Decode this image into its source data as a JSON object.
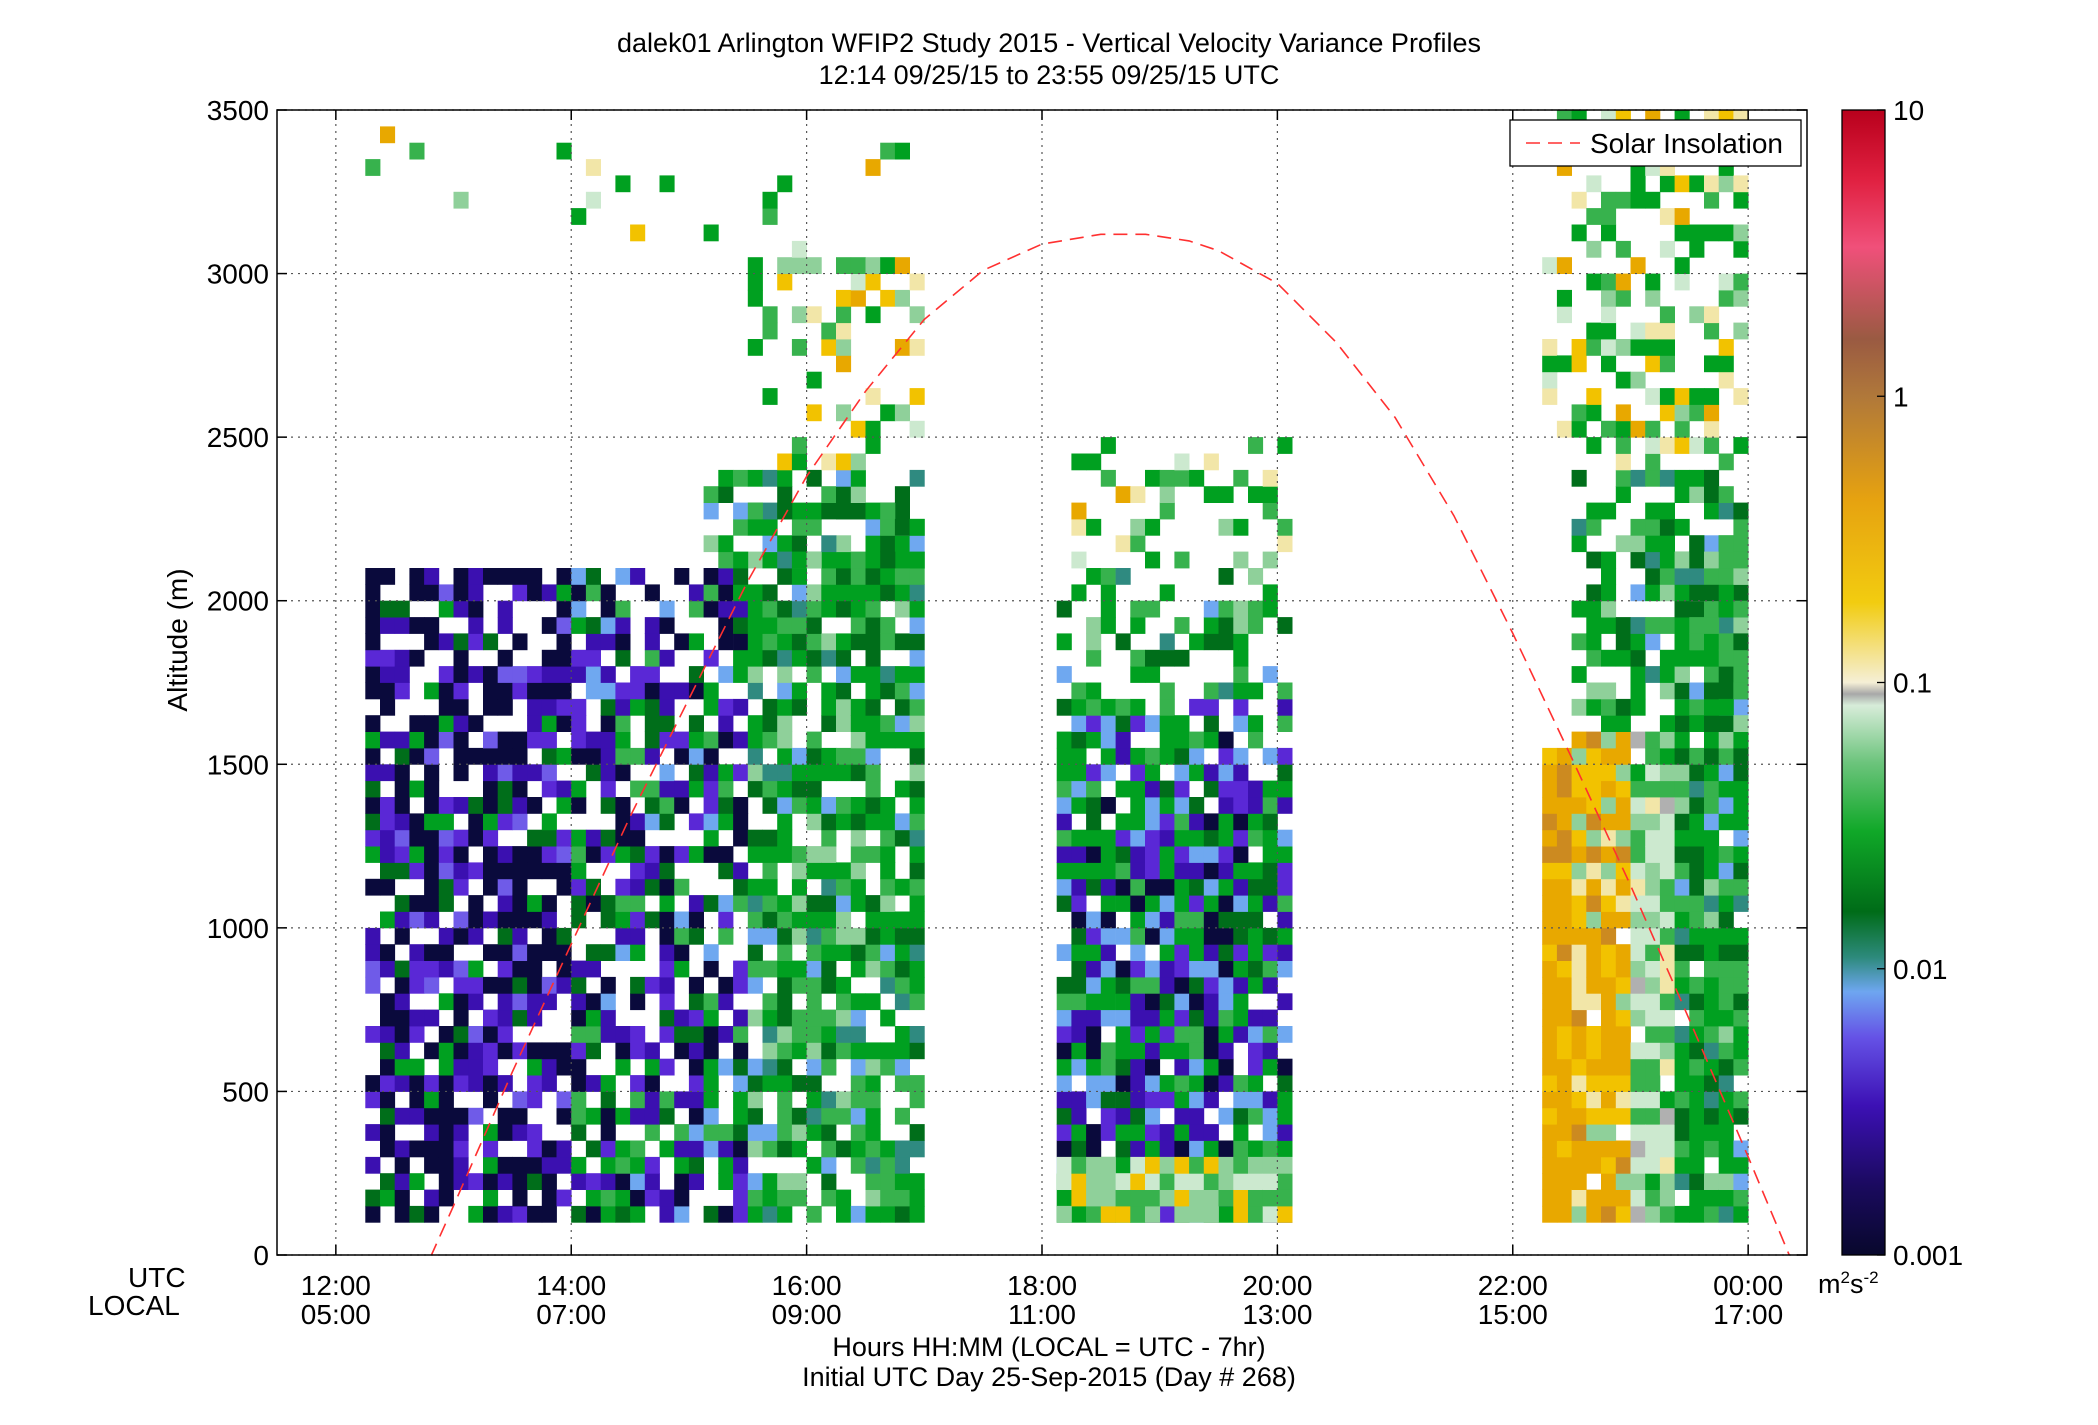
{
  "chart_data": {
    "type": "heatmap",
    "title": "dalek01 Arlington WFIP2 Study 2015 - Vertical Velocity Variance Profiles",
    "subtitle": "12:14 09/25/15 to 23:55 09/25/15  UTC",
    "xlabel": "Hours HH:MM  (LOCAL = UTC - 7hr)",
    "caption": "Initial UTC Day 25-Sep-2015 (Day # 268)",
    "ylabel": "Altitude (m)",
    "x_row_labels": [
      "UTC",
      "LOCAL"
    ],
    "xlim": [
      11.5,
      24.5
    ],
    "ylim": [
      0,
      3500
    ],
    "xticks": [
      {
        "value": 12,
        "utc": "12:00",
        "local": "05:00"
      },
      {
        "value": 14,
        "utc": "14:00",
        "local": "07:00"
      },
      {
        "value": 16,
        "utc": "16:00",
        "local": "09:00"
      },
      {
        "value": 18,
        "utc": "18:00",
        "local": "11:00"
      },
      {
        "value": 20,
        "utc": "20:00",
        "local": "13:00"
      },
      {
        "value": 22,
        "utc": "22:00",
        "local": "15:00"
      },
      {
        "value": 24,
        "utc": "00:00",
        "local": "17:00"
      }
    ],
    "yticks": [
      0,
      500,
      1000,
      1500,
      2000,
      2500,
      3000,
      3500
    ],
    "grid": true,
    "legend": {
      "entries": [
        "Solar Insolation"
      ],
      "placement": "top-right"
    },
    "colorbar": {
      "scale": "log",
      "range": [
        0.001,
        10
      ],
      "ticks": [
        "10",
        "1",
        "0.1",
        "0.01",
        "0.001"
      ],
      "units": "m2s-2"
    },
    "series": [
      {
        "name": "Solar Insolation",
        "style": "dashed",
        "color": "#ff3030",
        "x": [
          12.5,
          13.0,
          13.5,
          14.0,
          14.5,
          15.0,
          15.5,
          16.0,
          16.5,
          17.0,
          17.5,
          18.0,
          18.5,
          18.88,
          19.25,
          19.5,
          20.0,
          20.5,
          21.0,
          21.5,
          22.0,
          22.5,
          23.0,
          23.5,
          24.0,
          24.5
        ],
        "y": [
          -250,
          150,
          560,
          950,
          1340,
          1700,
          2060,
          2380,
          2640,
          2860,
          3010,
          3090,
          3120,
          3120,
          3100,
          3070,
          2970,
          2790,
          2560,
          2260,
          1900,
          1520,
          1130,
          720,
          300,
          -130
        ]
      }
    ],
    "colors": {
      "navy": "#0a0a3c",
      "purple": "#3b10b0",
      "violet": "#5a28d6",
      "blue_violet": "#6f5be8",
      "sky": "#6fa8f0",
      "teal": "#2f8a80",
      "dark_green": "#006e1a",
      "green": "#00a020",
      "mid_green": "#37b24d",
      "light_green": "#8fd09a",
      "pale_green": "#cce9cf",
      "gray": "#b0b0b0",
      "pale_yellow": "#f2e6a8",
      "yellow": "#f2c200",
      "orange": "#e8a800",
      "dark_orange": "#cc8a20",
      "brown": "#9e5b3a"
    }
  }
}
